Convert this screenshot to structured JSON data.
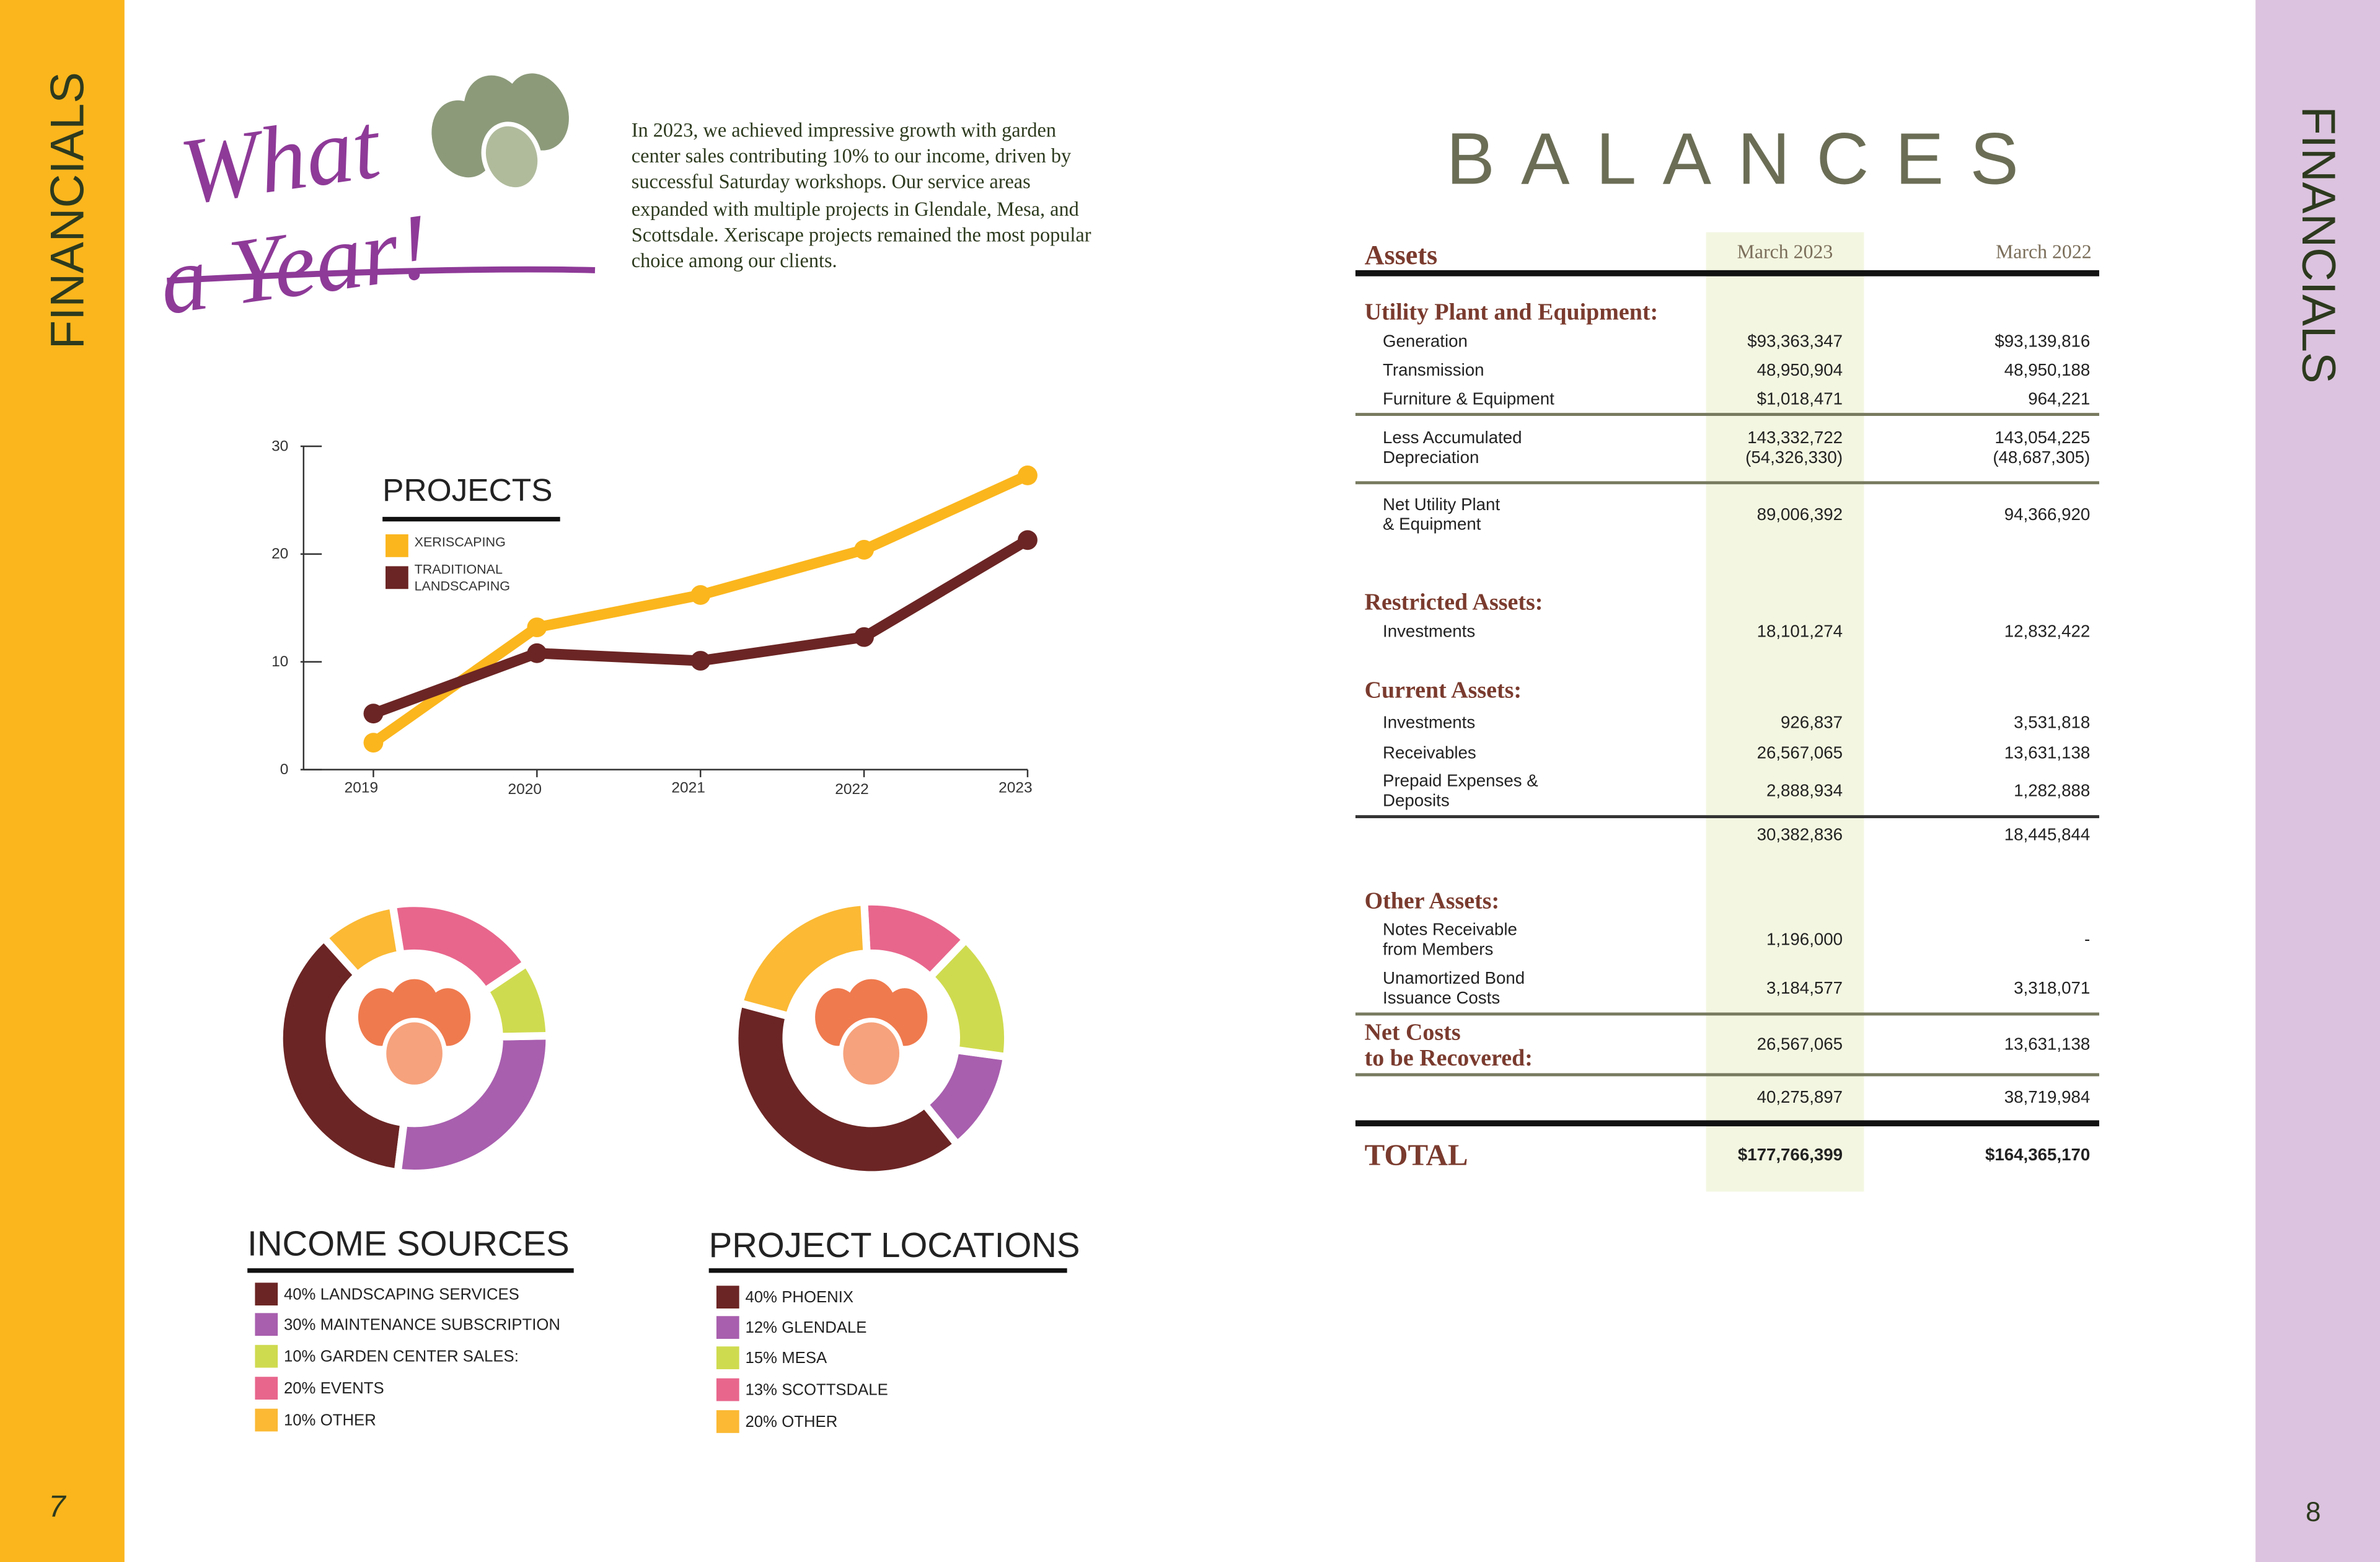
{
  "left_page": {
    "side_label": "FINANCIALS",
    "page_number": "7",
    "headline": "What\na Year!",
    "intro": "In 2023, we achieved impressive growth with garden center sales contributing 10% to our income, driven by successful Saturday workshops. Our service areas expanded with multiple projects in Glendale, Mesa, and Scottsdale. Xeriscape projects remained the most popular choice among our clients."
  },
  "chart_data": [
    {
      "type": "line",
      "title": "PROJECTS",
      "categories": [
        "2019",
        "2020",
        "2021",
        "2022",
        "2023"
      ],
      "series": [
        {
          "name": "XERISCAPING",
          "color": "#fbb61d",
          "values": [
            2.5,
            13.2,
            16.2,
            20.4,
            27.3
          ]
        },
        {
          "name": "TRADITIONAL LANDSCAPING",
          "color": "#6b2524",
          "values": [
            5.2,
            10.8,
            10.1,
            12.3,
            21.3
          ]
        }
      ],
      "ylim": [
        0,
        30
      ],
      "yticks": [
        0,
        10,
        20,
        30
      ]
    },
    {
      "type": "donut",
      "title": "INCOME SOURCES",
      "categories": [
        "LANDSCAPING SERVICES",
        "MAINTENANCE SUBSCRIPTION",
        "GARDEN CENTER SALES:",
        "EVENTS",
        "OTHER"
      ],
      "values": [
        40,
        30,
        10,
        20,
        10
      ],
      "value_labels": [
        "40%",
        "30%",
        "10%",
        "20%",
        "10%"
      ],
      "colors": [
        "#6b2524",
        "#a85fae",
        "#cfdb4f",
        "#e8668c",
        "#fbb934"
      ]
    },
    {
      "type": "donut",
      "title": "PROJECT LOCATIONS",
      "categories": [
        "PHOENIX",
        "GLENDALE",
        "MESA",
        "SCOTTSDALE",
        "OTHER"
      ],
      "values": [
        40,
        12,
        15,
        13,
        20
      ],
      "value_labels": [
        "40%",
        "12%",
        "15%",
        "13%",
        "20%"
      ],
      "colors": [
        "#6b2524",
        "#a85fae",
        "#cfdb4f",
        "#e8668c",
        "#fbb934"
      ]
    }
  ],
  "right_page": {
    "side_label": "FINANCIALS",
    "page_number": "8",
    "title": "BALANCES",
    "header": [
      "Assets",
      "March 2023",
      "March 2022"
    ],
    "rows": [
      {
        "section": "Utility Plant and Equipment:"
      },
      {
        "label": "Generation",
        "values": [
          "$93,363,347",
          "$93,139,816"
        ]
      },
      {
        "label": "Transmission",
        "values": [
          "48,950,904",
          "48,950,188"
        ]
      },
      {
        "label": "Furniture & Equipment",
        "values": [
          "$1,018,471",
          "964,221"
        ]
      },
      {
        "label": "Less Accumulated\nDepreciation",
        "values": [
          "143,332,722\n(54,326,330)",
          "143,054,225\n(48,687,305)"
        ]
      },
      {
        "label": "Net Utility Plant\n& Equipment",
        "values": [
          "89,006,392",
          "94,366,920"
        ]
      },
      {
        "section": "Restricted Assets:"
      },
      {
        "label": "Investments",
        "values": [
          "18,101,274",
          "12,832,422"
        ]
      },
      {
        "section": "Current Assets:"
      },
      {
        "label": "Investments",
        "values": [
          "926,837",
          "3,531,818"
        ]
      },
      {
        "label": "Receivables",
        "values": [
          "26,567,065",
          "13,631,138"
        ]
      },
      {
        "label": "Prepaid Expenses &\nDeposits",
        "values": [
          "2,888,934",
          "1,282,888"
        ]
      },
      {
        "values": [
          "30,382,836",
          "18,445,844"
        ]
      },
      {
        "section": "Other Assets:"
      },
      {
        "label": "Notes Receivable\nfrom Members",
        "values": [
          "1,196,000",
          "-"
        ]
      },
      {
        "label": "Unamortized Bond\nIssuance Costs",
        "values": [
          "3,184,577",
          "3,318,071"
        ]
      },
      {
        "section": "Net Costs\nto be Recovered:",
        "values": [
          "26,567,065",
          "13,631,138"
        ]
      },
      {
        "values": [
          "40,275,897",
          "38,719,984"
        ]
      },
      {
        "total": "TOTAL",
        "values": [
          "$177,766,399",
          "$164,365,170"
        ]
      }
    ]
  }
}
